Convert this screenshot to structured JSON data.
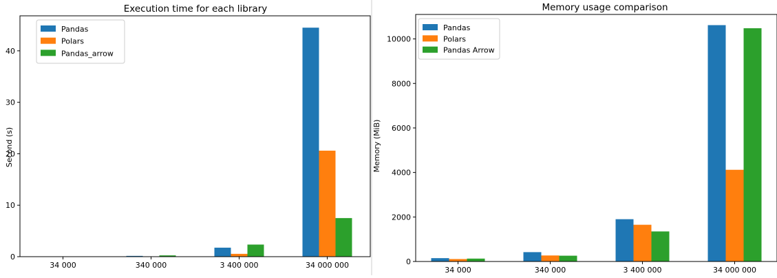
{
  "colors": {
    "series1": "#1f77b4",
    "series2": "#ff7f0e",
    "series3": "#2ca02c"
  },
  "chart_data": [
    {
      "type": "bar",
      "title": "Execution time for each library",
      "xlabel": "",
      "ylabel": "Second (s)",
      "categories": [
        "34 000",
        "340 000",
        "3 400 000",
        "34 000 000"
      ],
      "ylim": [
        0,
        46.8
      ],
      "yticks": [
        0,
        10,
        20,
        30,
        40
      ],
      "legend_position": "top-left",
      "series": [
        {
          "name": "Pandas",
          "values": [
            0.01,
            0.15,
            1.75,
            44.5
          ]
        },
        {
          "name": "Polars",
          "values": [
            0.01,
            0.05,
            0.55,
            20.6
          ]
        },
        {
          "name": "Pandas_arrow",
          "values": [
            0.01,
            0.25,
            2.35,
            7.5
          ]
        }
      ]
    },
    {
      "type": "bar",
      "title": "Memory usage comparison",
      "xlabel": "",
      "ylabel": "Memory (MiB)",
      "categories": [
        "34 000",
        "340 000",
        "3 400 000",
        "34 000 000"
      ],
      "ylim": [
        0,
        11100
      ],
      "yticks": [
        0,
        2000,
        4000,
        6000,
        8000,
        10000
      ],
      "legend_position": "top-left",
      "series": [
        {
          "name": "Pandas",
          "values": [
            150,
            420,
            1900,
            10620
          ]
        },
        {
          "name": "Polars",
          "values": [
            110,
            270,
            1650,
            4120
          ]
        },
        {
          "name": "Pandas Arrow",
          "values": [
            130,
            260,
            1350,
            10480
          ]
        }
      ]
    }
  ]
}
